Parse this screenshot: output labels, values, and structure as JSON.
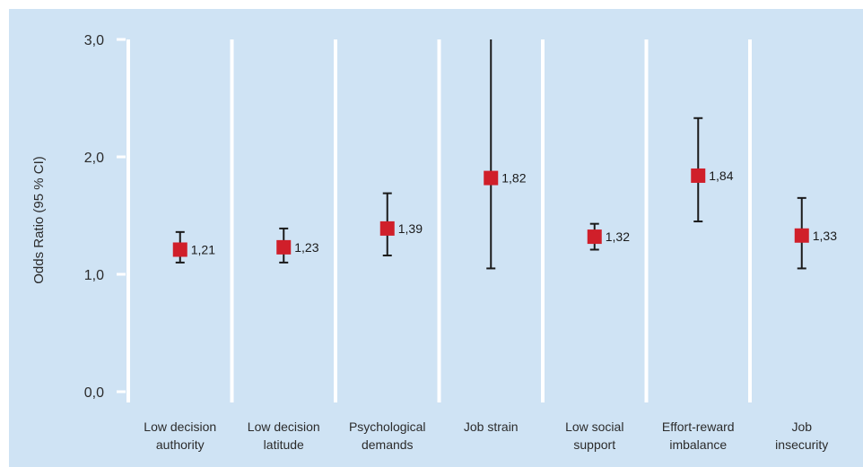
{
  "chart_data": {
    "type": "scatter",
    "title": "",
    "xlabel": "",
    "ylabel": "Odds Ratio (95 % CI)",
    "ylim": [
      0,
      3
    ],
    "yticks": [
      "0,0",
      "1,0",
      "2,0",
      "3,0"
    ],
    "ytick_values": [
      0,
      1,
      2,
      3
    ],
    "grid": false,
    "categories": [
      [
        "Low decision",
        "authority"
      ],
      [
        "Low decision",
        "latitude"
      ],
      [
        "Psychological",
        "demands"
      ],
      [
        "Job strain"
      ],
      [
        "Low social",
        "support"
      ],
      [
        "Effort-reward",
        "imbalance"
      ],
      [
        "Job",
        "insecurity"
      ]
    ],
    "series": [
      {
        "values": [
          1.21,
          1.23,
          1.39,
          1.82,
          1.32,
          1.84,
          1.33
        ],
        "value_labels": [
          "1,21",
          "1,23",
          "1,39",
          "1,82",
          "1,32",
          "1,84",
          "1,33"
        ],
        "ci_low": [
          1.1,
          1.1,
          1.16,
          1.05,
          1.21,
          1.45,
          1.05
        ],
        "ci_high": [
          1.36,
          1.39,
          1.69,
          3.0,
          1.43,
          2.33,
          1.65
        ]
      }
    ],
    "colors": {
      "background": "#cfe3f4",
      "separator": "#ffffff",
      "marker": "#d01f2a",
      "whisker": "#1a1a1a"
    }
  }
}
